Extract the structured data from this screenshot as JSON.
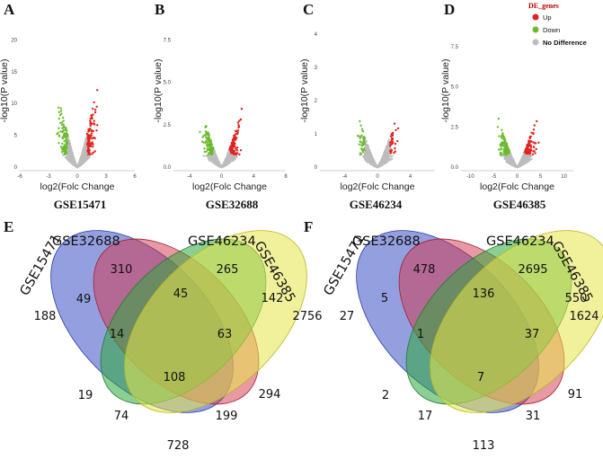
{
  "panels": {
    "A": "A",
    "B": "B",
    "C": "C",
    "D": "D",
    "E": "E",
    "F": "F"
  },
  "colors": {
    "up": "#e0221f",
    "down": "#6cbb2f",
    "nodiff": "#bdbdbd"
  },
  "legend": {
    "title": "DE_genes",
    "items": [
      "Up",
      "Down",
      "No Difference"
    ]
  },
  "chart_data": [
    {
      "type": "scatter",
      "title": "GSE15471",
      "xlabel": "log2(Folc Change",
      "ylabel": "-log10(P value)",
      "x_ticks": [
        "-6",
        "-3",
        "0",
        "3",
        "6"
      ],
      "y_ticks": [
        "0",
        "5",
        "10",
        "15",
        "20"
      ],
      "xlim": [
        -6,
        6
      ],
      "ylim": [
        0,
        24
      ]
    },
    {
      "type": "scatter",
      "title": "GSE32688",
      "xlabel": "log2(Folc Change",
      "ylabel": "-log10(P value)",
      "x_ticks": [
        "-4",
        "0",
        "4",
        "8"
      ],
      "y_ticks": [
        "0.0",
        "2.5",
        "5.0",
        "7.5"
      ],
      "xlim": [
        -6,
        8
      ],
      "ylim": [
        0,
        9
      ]
    },
    {
      "type": "scatter",
      "title": "GSE46234",
      "xlabel": "log2(Folc Change",
      "ylabel": "-log10(P value)",
      "x_ticks": [
        "-4",
        "0",
        "4"
      ],
      "y_ticks": [
        "0",
        "1",
        "2",
        "3",
        "4"
      ],
      "xlim": [
        -7,
        7
      ],
      "ylim": [
        0,
        4.6
      ]
    },
    {
      "type": "scatter",
      "title": "GSE46385",
      "xlabel": "log2(Folc Change",
      "ylabel": "-log10(P value)",
      "x_ticks": [
        "-10",
        "-5",
        "0",
        "5",
        "10"
      ],
      "y_ticks": [
        "0.0",
        "2.5",
        "5.0",
        "7.5"
      ],
      "xlim": [
        -12,
        12
      ],
      "ylim": [
        0,
        9.5
      ]
    }
  ],
  "venn_E": {
    "sets": [
      "GSE15471",
      "GSE32688",
      "GSE46234",
      "GSE46385"
    ],
    "values": {
      "v1000": "188",
      "v0100": "310",
      "v0010": "265",
      "v0001": "2756",
      "v1100": "49",
      "v0110": "45",
      "v0011": "142",
      "v1010": "19",
      "v0101": "294",
      "v1001": "728",
      "v1110": "14",
      "v0111": "63",
      "v1011": "74",
      "v1101": "199",
      "v1111": "108"
    }
  },
  "venn_F": {
    "sets": [
      "GSE15471",
      "GSE32688",
      "GSE46234",
      "GSE46385"
    ],
    "values": {
      "v1000": "27",
      "v0100": "478",
      "v0010": "2695",
      "v0001": "1624",
      "v1100": "5",
      "v0110": "136",
      "v0011": "550",
      "v1010": "2",
      "v0101": "91",
      "v1001": "113",
      "v1110": "1",
      "v0111": "37",
      "v1011": "17",
      "v1101": "31",
      "v1111": "7"
    }
  }
}
